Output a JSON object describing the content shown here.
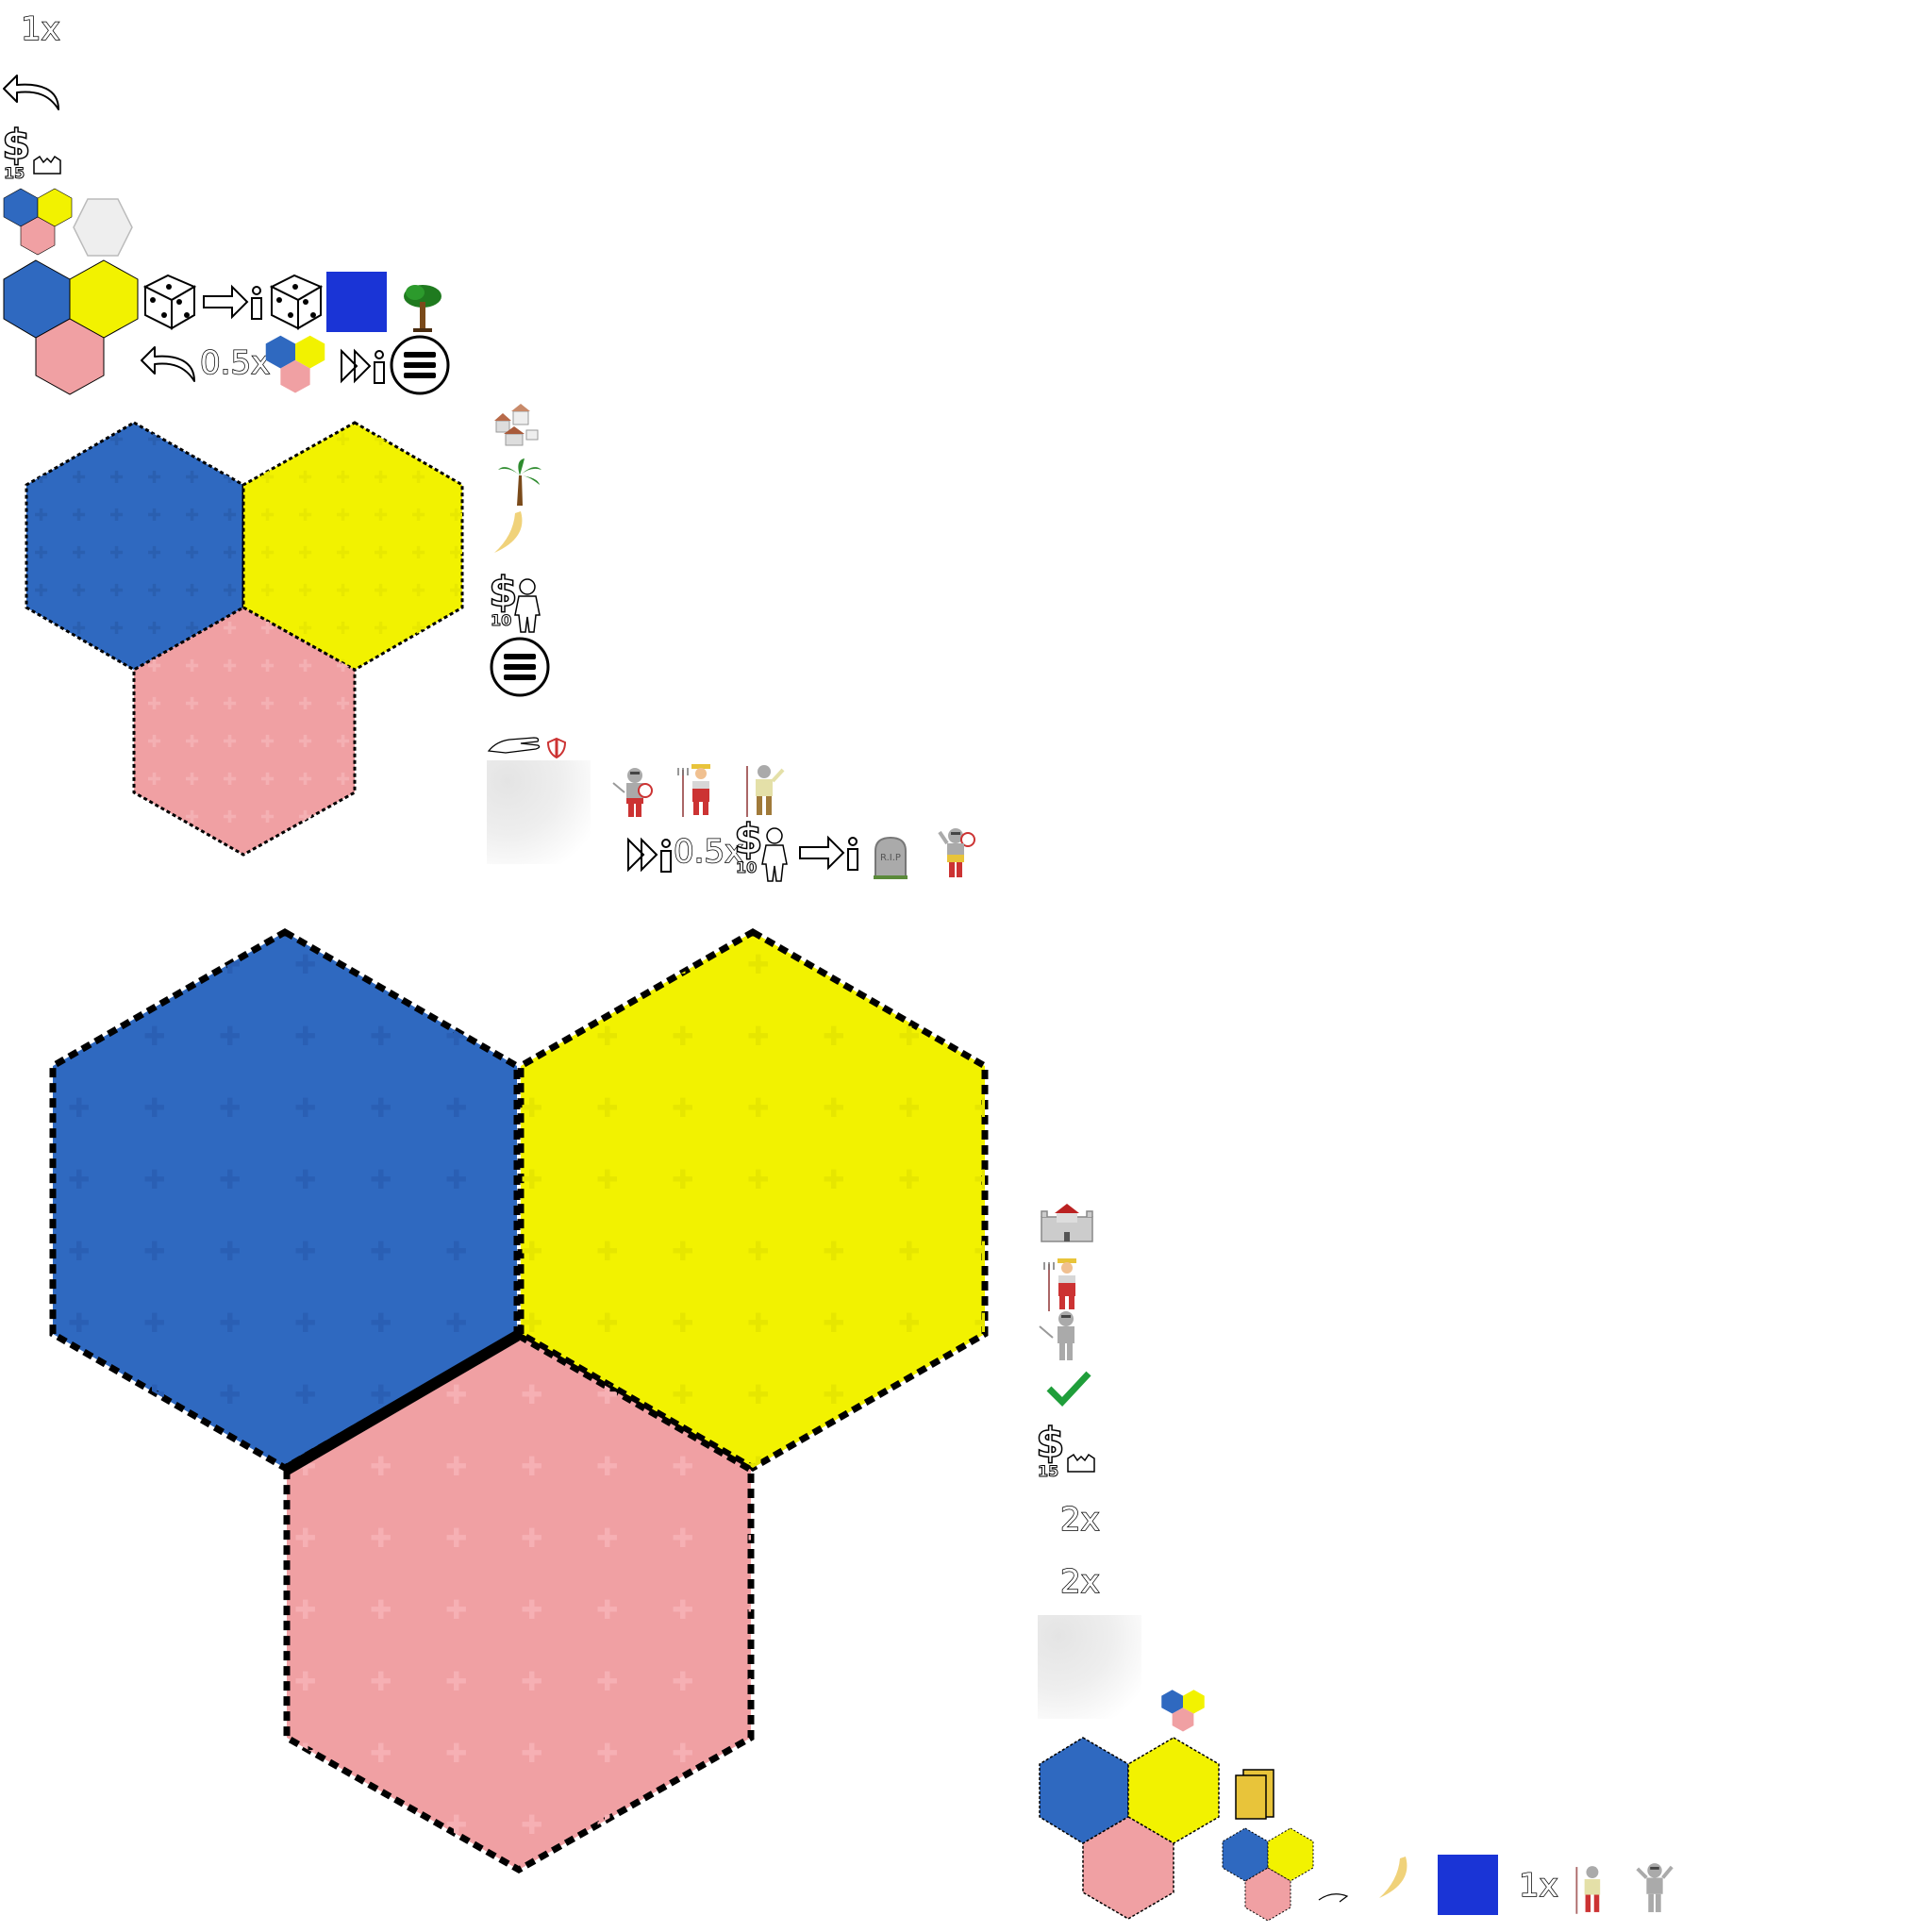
{
  "colors": {
    "blue": "#2f69c0",
    "yellow": "#f2f200",
    "pink": "#f0a0a3",
    "grey_hex": "#ececec",
    "check_green": "#1f9e3a",
    "water": "#1a34d6",
    "card": "#e8c43a"
  },
  "left_panel": {
    "speed_top": "1x",
    "undo_icon": "undo-arrow-icon",
    "cost_15": "15",
    "speed_half": "0.5x",
    "menu_icon": "hamburger-menu-icon"
  },
  "middle_panel": {
    "cost_10": "10",
    "speed_half": "0.5x",
    "cost_10b": "10",
    "gravestone_text": "R.I.P"
  },
  "right_panel": {
    "cost_15": "15",
    "speed_2x_a": "2x",
    "speed_2x_b": "2x"
  },
  "bottom_bar": {
    "speed_1x": "1x"
  }
}
